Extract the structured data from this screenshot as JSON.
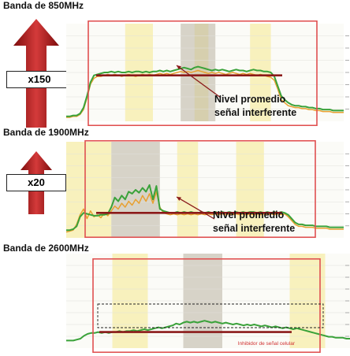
{
  "colors": {
    "frame": "#e05050",
    "avg_line": "#8b1a1a",
    "series_green": "#3aa23a",
    "series_orange": "#e8a030",
    "band_yellow": "#f7efb6",
    "band_gray": "#b9b3a3",
    "arrow_dark": "#7d0d0d",
    "arrow_light": "#d43a3a"
  },
  "chart_data": [
    {
      "type": "line",
      "title": "Banda de 850MHz",
      "multiplier": "x150",
      "annotation": [
        "Nivel promedio",
        "señal interferente"
      ],
      "x": [
        0,
        1,
        2,
        3,
        4,
        5,
        6,
        7,
        8,
        9,
        10,
        11,
        12,
        13,
        14,
        15,
        16,
        17,
        18,
        19,
        20,
        21,
        22,
        23,
        24,
        25,
        26,
        27,
        28,
        29,
        30,
        31,
        32,
        33,
        34,
        35,
        36,
        37,
        38,
        39,
        40,
        41,
        42,
        43,
        44,
        45,
        46,
        47,
        48,
        49,
        50,
        51,
        52,
        53,
        54,
        55,
        56,
        57,
        58,
        59,
        60,
        61,
        62,
        63,
        64,
        65,
        66,
        67,
        68,
        69,
        70,
        71,
        72,
        73,
        74,
        75,
        76,
        77,
        78,
        79,
        80
      ],
      "series": [
        {
          "values": [
            5,
            5,
            6,
            6,
            8,
            14,
            26,
            40,
            47,
            48,
            49,
            50,
            50,
            51,
            50,
            51,
            50,
            50,
            51,
            50,
            51,
            51,
            50,
            51,
            50,
            51,
            51,
            52,
            51,
            52,
            51,
            52,
            53,
            54,
            55,
            54,
            53,
            55,
            56,
            55,
            54,
            53,
            52,
            53,
            52,
            53,
            52,
            51,
            52,
            53,
            52,
            52,
            51,
            52,
            53,
            52,
            52,
            51,
            51,
            50,
            46,
            36,
            26,
            22,
            19,
            17,
            16,
            16,
            15,
            15,
            14,
            14,
            13,
            13,
            12,
            12,
            12,
            11,
            11,
            11,
            11
          ]
        },
        {
          "values": [
            4,
            4,
            5,
            5,
            7,
            12,
            24,
            38,
            44,
            46,
            46,
            47,
            48,
            47,
            48,
            47,
            46,
            47,
            48,
            47,
            46,
            47,
            48,
            47,
            48,
            47,
            48,
            49,
            48,
            49,
            48,
            49,
            50,
            51,
            50,
            51,
            50,
            51,
            52,
            51,
            50,
            49,
            50,
            49,
            50,
            49,
            48,
            49,
            50,
            49,
            48,
            49,
            48,
            49,
            48,
            47,
            48,
            47,
            46,
            45,
            42,
            33,
            22,
            19,
            16,
            15,
            14,
            14,
            13,
            13,
            12,
            12,
            11,
            11,
            10,
            10,
            10,
            9,
            9,
            9,
            9
          ]
        }
      ],
      "avg_level": 47,
      "band_shading": {
        "yellow": [
          [
            17,
            25
          ],
          [
            37,
            41
          ],
          [
            53,
            59
          ]
        ],
        "gray": [
          [
            33,
            43
          ]
        ]
      },
      "ylim": [
        0,
        100
      ]
    },
    {
      "type": "line",
      "title": "Banda de 1900MHz",
      "multiplier": "x20",
      "annotation": [
        "Nivel promedio",
        "señal interferente"
      ],
      "x": [
        0,
        1,
        2,
        3,
        4,
        5,
        6,
        7,
        8,
        9,
        10,
        11,
        12,
        13,
        14,
        15,
        16,
        17,
        18,
        19,
        20,
        21,
        22,
        23,
        24,
        25,
        26,
        27,
        28,
        29,
        30,
        31,
        32,
        33,
        34,
        35,
        36,
        37,
        38,
        39,
        40,
        41,
        42,
        43,
        44,
        45,
        46,
        47,
        48,
        49,
        50,
        51,
        52,
        53,
        54,
        55,
        56,
        57,
        58,
        59,
        60,
        61,
        62,
        63,
        64,
        65,
        66,
        67,
        68,
        69,
        70,
        71,
        72,
        73,
        74,
        75,
        76,
        77,
        78,
        79,
        80
      ],
      "series": [
        {
          "values": [
            8,
            8,
            9,
            12,
            22,
            26,
            25,
            24,
            23,
            23,
            24,
            24,
            25,
            32,
            42,
            38,
            44,
            40,
            48,
            46,
            50,
            47,
            52,
            48,
            55,
            40,
            54,
            30,
            28,
            27,
            26,
            26,
            27,
            26,
            27,
            26,
            27,
            26,
            26,
            27,
            26,
            27,
            26,
            27,
            26,
            27,
            26,
            27,
            26,
            27,
            26,
            27,
            26,
            27,
            27,
            26,
            27,
            26,
            27,
            26,
            27,
            26,
            27,
            26,
            24,
            20,
            16,
            14,
            14,
            13,
            13,
            13,
            12,
            12,
            12,
            12,
            11,
            11,
            11,
            11,
            11
          ]
        },
        {
          "values": [
            6,
            7,
            8,
            14,
            24,
            30,
            20,
            28,
            22,
            24,
            21,
            26,
            23,
            28,
            33,
            30,
            36,
            32,
            38,
            34,
            40,
            36,
            44,
            38,
            46,
            36,
            48,
            32,
            26,
            25,
            24,
            25,
            24,
            25,
            24,
            25,
            24,
            25,
            24,
            25,
            24,
            25,
            24,
            25,
            24,
            25,
            24,
            25,
            24,
            25,
            24,
            25,
            24,
            25,
            24,
            25,
            24,
            25,
            24,
            25,
            24,
            25,
            24,
            25,
            22,
            18,
            14,
            12,
            12,
            11,
            11,
            11,
            10,
            10,
            10,
            10,
            9,
            9,
            9,
            9,
            9
          ]
        }
      ],
      "avg_level": 26,
      "band_shading": {
        "yellow": [
          [
            0,
            13
          ],
          [
            32,
            38
          ],
          [
            49,
            57
          ]
        ],
        "gray": [
          [
            13,
            27
          ]
        ]
      },
      "ylim": [
        0,
        100
      ]
    },
    {
      "type": "line",
      "title": "Banda de 2600MHz",
      "annotation_small": "Inhibidor de señal celular",
      "x": [
        0,
        1,
        2,
        3,
        4,
        5,
        6,
        7,
        8,
        9,
        10,
        11,
        12,
        13,
        14,
        15,
        16,
        17,
        18,
        19,
        20,
        21,
        22,
        23,
        24,
        25,
        26,
        27,
        28,
        29,
        30,
        31,
        32,
        33,
        34,
        35,
        36,
        37,
        38,
        39,
        40,
        41,
        42,
        43,
        44,
        45,
        46,
        47,
        48,
        49,
        50,
        51,
        52,
        53,
        54,
        55,
        56,
        57,
        58,
        59,
        60,
        61,
        62,
        63,
        64,
        65,
        66,
        67,
        68,
        69,
        70,
        71,
        72,
        73,
        74,
        75,
        76,
        77,
        78,
        79,
        80
      ],
      "series": [
        {
          "values": [
            8,
            8,
            8,
            9,
            10,
            13,
            15,
            16,
            16,
            17,
            16,
            17,
            16,
            17,
            17,
            18,
            17,
            18,
            18,
            19,
            18,
            19,
            20,
            19,
            20,
            21,
            22,
            21,
            22,
            23,
            24,
            26,
            25,
            27,
            28,
            27,
            28,
            27,
            28,
            29,
            28,
            27,
            28,
            27,
            26,
            27,
            26,
            25,
            26,
            25,
            24,
            25,
            24,
            25,
            24,
            23,
            24,
            23,
            22,
            23,
            22,
            21,
            22,
            21,
            20,
            21,
            20,
            19,
            18,
            17,
            16,
            15,
            14,
            13,
            12,
            12,
            11,
            11,
            11,
            10,
            10
          ]
        }
      ],
      "avg_level": 17,
      "band_shading": {
        "yellow": [
          [
            13,
            23
          ],
          [
            63,
            73
          ]
        ],
        "gray": [
          [
            33,
            44
          ]
        ]
      },
      "ylim": [
        0,
        100
      ]
    }
  ]
}
